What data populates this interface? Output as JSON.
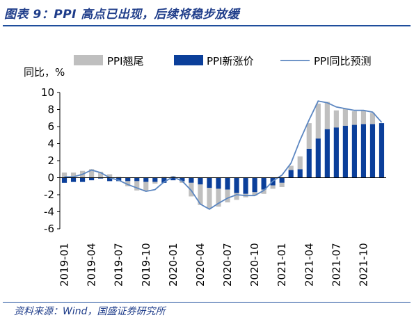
{
  "title": "图表 9：PPI 高点已出现，后续将稳步放缓",
  "source": "资料来源：Wind，国盛证券研究所",
  "colors": {
    "carryover": "#bfbfbf",
    "new_increase": "#0b3f9a",
    "yoy": "#5b86c1",
    "accent": "#1f4e9c"
  },
  "chart_data": {
    "type": "bar",
    "stacked": true,
    "ylabel": "同比，%",
    "ylim": [
      -6,
      10
    ],
    "yticks": [
      -6,
      -4,
      -2,
      0,
      2,
      4,
      6,
      8,
      10
    ],
    "legend_position": "top",
    "x": [
      "2019-01",
      "2019-02",
      "2019-03",
      "2019-04",
      "2019-05",
      "2019-06",
      "2019-07",
      "2019-08",
      "2019-09",
      "2019-10",
      "2019-11",
      "2019-12",
      "2020-01",
      "2020-02",
      "2020-03",
      "2020-04",
      "2020-05",
      "2020-06",
      "2020-07",
      "2020-08",
      "2020-09",
      "2020-10",
      "2020-11",
      "2020-12",
      "2021-01",
      "2021-02",
      "2021-03",
      "2021-04",
      "2021-05",
      "2021-06",
      "2021-07",
      "2021-08",
      "2021-09",
      "2021-10",
      "2021-11",
      "2021-12"
    ],
    "xtick_labels": [
      "2019-01",
      "2019-04",
      "2019-07",
      "2019-10",
      "2020-01",
      "2020-04",
      "2020-07",
      "2020-10",
      "2021-01",
      "2021-04",
      "2021-07",
      "2021-10"
    ],
    "series": [
      {
        "name": "PPI翘尾",
        "kind": "bar",
        "values": [
          0.6,
          0.6,
          0.8,
          1.0,
          0.7,
          0.4,
          0.1,
          -0.6,
          -1.1,
          -1.1,
          -0.2,
          0.1,
          0.2,
          -0.2,
          -1.6,
          -2.4,
          -2.4,
          -2.1,
          -1.5,
          -0.8,
          -0.4,
          -0.4,
          -0.5,
          -0.4,
          -0.5,
          0.5,
          1.5,
          3.0,
          4.1,
          3.2,
          2.0,
          2.0,
          1.6,
          1.6,
          1.3,
          0.0
        ]
      },
      {
        "name": "PPI新涨价",
        "kind": "bar",
        "values": [
          -0.6,
          -0.5,
          -0.5,
          -0.3,
          -0.1,
          -0.4,
          -0.4,
          -0.4,
          -0.4,
          -0.5,
          -0.5,
          -0.6,
          -0.3,
          -0.4,
          -0.6,
          -0.8,
          -1.2,
          -1.3,
          -1.4,
          -1.8,
          -1.9,
          -1.7,
          -1.4,
          -0.9,
          -0.6,
          0.9,
          1.0,
          3.4,
          4.6,
          5.7,
          5.9,
          6.1,
          6.2,
          6.3,
          6.3,
          6.4
        ]
      },
      {
        "name": "PPI同比预测",
        "kind": "line",
        "values": [
          0.1,
          0.1,
          0.4,
          0.9,
          0.6,
          0.0,
          -0.3,
          -0.8,
          -1.2,
          -1.6,
          -1.4,
          -0.5,
          0.1,
          -0.4,
          -1.5,
          -3.1,
          -3.7,
          -3.0,
          -2.4,
          -2.0,
          -2.1,
          -2.1,
          -1.5,
          -0.4,
          0.3,
          1.7,
          4.4,
          6.8,
          9.0,
          8.8,
          8.3,
          8.1,
          7.9,
          7.9,
          7.7,
          6.5
        ]
      }
    ]
  }
}
